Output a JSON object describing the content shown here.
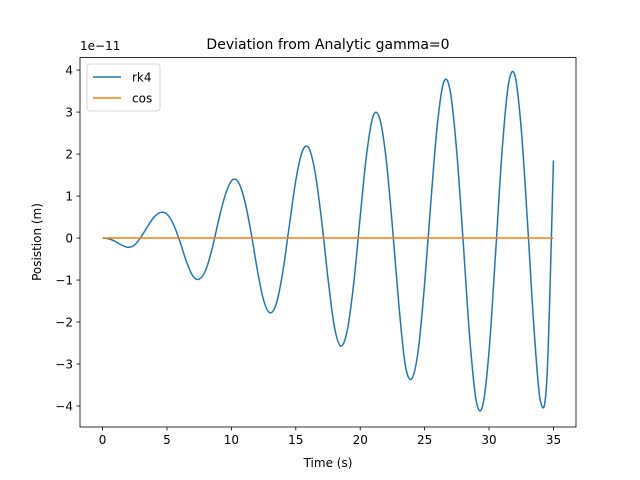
{
  "chart_data": {
    "type": "line",
    "title": "Deviation from Analytic gamma=0",
    "xlabel": "Time (s)",
    "ylabel": "Posistion (m)",
    "y_offset_label": "1e−11",
    "xlim": [
      -1.75,
      36.75
    ],
    "ylim": [
      -4.5,
      4.3
    ],
    "x_ticks": [
      0,
      5,
      10,
      15,
      20,
      25,
      30,
      35
    ],
    "y_ticks": [
      -4,
      -3,
      -2,
      -1,
      0,
      1,
      2,
      3,
      4
    ],
    "x_tick_labels": [
      "0",
      "5",
      "10",
      "15",
      "20",
      "25",
      "30",
      "35"
    ],
    "y_tick_labels": [
      "−4",
      "−3",
      "−2",
      "−1",
      "0",
      "1",
      "2",
      "3",
      "4"
    ],
    "grid": false,
    "legend_position": "upper-left",
    "series": [
      {
        "name": "rk4",
        "color": "#1f77b4",
        "x": [
          0,
          0.5,
          1.0,
          1.5,
          2.0,
          2.5,
          3.0,
          3.5,
          4.0,
          4.5,
          5.0,
          5.5,
          6.0,
          6.5,
          7.0,
          7.5,
          8.0,
          8.5,
          9.0,
          9.5,
          10.0,
          10.5,
          11.0,
          11.5,
          12.0,
          12.5,
          13.0,
          13.5,
          14.0,
          14.5,
          15.0,
          15.5,
          16.0,
          16.5,
          17.0,
          17.5,
          18.0,
          18.5,
          19.0,
          19.5,
          20.0,
          20.5,
          21.0,
          21.5,
          22.0,
          22.5,
          23.0,
          23.5,
          24.0,
          24.5,
          25.0,
          25.5,
          26.0,
          26.5,
          27.0,
          27.5,
          28.0,
          28.5,
          29.0,
          29.5,
          30.0,
          30.5,
          31.0,
          31.5,
          32.0,
          32.5,
          33.0,
          33.5,
          34.0,
          34.5,
          35.0
        ],
        "values": [
          0.0,
          -0.02,
          -0.08,
          -0.17,
          -0.22,
          -0.16,
          0.03,
          0.28,
          0.5,
          0.61,
          0.57,
          0.33,
          -0.08,
          -0.55,
          -0.9,
          -0.98,
          -0.77,
          -0.26,
          0.41,
          1.0,
          1.36,
          1.35,
          0.93,
          0.18,
          -0.73,
          -1.48,
          -1.78,
          -1.55,
          -0.79,
          0.3,
          1.37,
          2.06,
          2.15,
          1.56,
          0.43,
          -0.96,
          -2.12,
          -2.57,
          -2.19,
          -1.07,
          0.51,
          2.0,
          2.9,
          2.86,
          1.92,
          0.27,
          -1.59,
          -3.03,
          -3.35,
          -2.68,
          -1.09,
          0.92,
          2.74,
          3.73,
          3.48,
          2.03,
          -0.12,
          -2.37,
          -3.87,
          -4.0,
          -2.7,
          -0.4,
          2.02,
          3.65,
          3.88,
          2.6,
          0.3,
          -2.2,
          -3.9,
          -3.3,
          1.85
        ]
      },
      {
        "name": "cos",
        "color": "#ff7f0e",
        "x": [
          0,
          35
        ],
        "values": [
          0,
          0
        ]
      }
    ]
  }
}
